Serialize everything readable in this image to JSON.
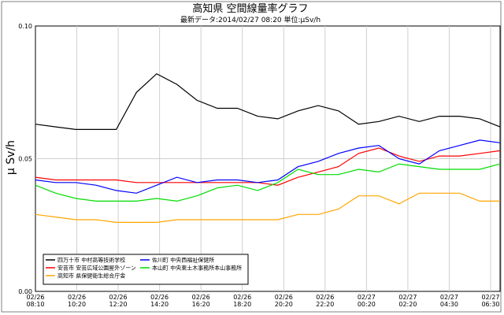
{
  "chart_data": {
    "type": "line",
    "title": "高知県 空間線量率グラフ",
    "subtitle": "最新データ:2014/02/27 08:20 単位:μSv/h",
    "ylabel": "μ Sv/h",
    "xlabel": "",
    "ylim": [
      0.0,
      0.1
    ],
    "yticks": [
      "0.00",
      "0.05",
      "0.10"
    ],
    "grid": true,
    "legend_position": "bottom-left",
    "x_ticks": [
      {
        "date": "02/26",
        "time": "08:10"
      },
      {
        "date": "02/26",
        "time": "10:20"
      },
      {
        "date": "02/26",
        "time": "12:20"
      },
      {
        "date": "02/26",
        "time": "14:20"
      },
      {
        "date": "02/26",
        "time": "16:20"
      },
      {
        "date": "02/26",
        "time": "18:20"
      },
      {
        "date": "02/26",
        "time": "20:20"
      },
      {
        "date": "02/26",
        "time": "22:20"
      },
      {
        "date": "02/27",
        "time": "00:20"
      },
      {
        "date": "02/27",
        "time": "02:20"
      },
      {
        "date": "02/27",
        "time": "04:30"
      },
      {
        "date": "02/27",
        "time": "06:30"
      }
    ],
    "series": [
      {
        "name": "四万十市 中村高等技術学校",
        "color": "#000000",
        "points": [
          [
            0,
            0.063
          ],
          [
            1,
            0.062
          ],
          [
            2,
            0.061
          ],
          [
            3,
            0.061
          ],
          [
            4,
            0.061
          ],
          [
            5,
            0.075
          ],
          [
            6,
            0.082
          ],
          [
            7,
            0.078
          ],
          [
            8,
            0.072
          ],
          [
            9,
            0.069
          ],
          [
            10,
            0.069
          ],
          [
            11,
            0.066
          ],
          [
            12,
            0.065
          ],
          [
            13,
            0.068
          ],
          [
            14,
            0.07
          ],
          [
            15,
            0.068
          ],
          [
            16,
            0.063
          ],
          [
            17,
            0.064
          ],
          [
            18,
            0.066
          ],
          [
            19,
            0.064
          ],
          [
            20,
            0.066
          ],
          [
            21,
            0.066
          ],
          [
            22,
            0.065
          ],
          [
            23,
            0.062
          ]
        ]
      },
      {
        "name": "安芸市 安芸広域公園屋外ゾーン",
        "color": "#ff0000",
        "points": [
          [
            0,
            0.043
          ],
          [
            1,
            0.042
          ],
          [
            2,
            0.042
          ],
          [
            3,
            0.042
          ],
          [
            4,
            0.042
          ],
          [
            5,
            0.041
          ],
          [
            6,
            0.041
          ],
          [
            7,
            0.041
          ],
          [
            8,
            0.041
          ],
          [
            9,
            0.041
          ],
          [
            10,
            0.041
          ],
          [
            11,
            0.041
          ],
          [
            12,
            0.04
          ],
          [
            13,
            0.043
          ],
          [
            14,
            0.045
          ],
          [
            15,
            0.047
          ],
          [
            16,
            0.052
          ],
          [
            17,
            0.054
          ],
          [
            18,
            0.051
          ],
          [
            19,
            0.049
          ],
          [
            20,
            0.051
          ],
          [
            21,
            0.051
          ],
          [
            22,
            0.052
          ],
          [
            23,
            0.053
          ]
        ]
      },
      {
        "name": "高知市 県保健衛生総合庁舎",
        "color": "#ffa500",
        "points": [
          [
            0,
            0.029
          ],
          [
            1,
            0.028
          ],
          [
            2,
            0.027
          ],
          [
            3,
            0.027
          ],
          [
            4,
            0.026
          ],
          [
            5,
            0.026
          ],
          [
            6,
            0.026
          ],
          [
            7,
            0.027
          ],
          [
            8,
            0.027
          ],
          [
            9,
            0.027
          ],
          [
            10,
            0.027
          ],
          [
            11,
            0.027
          ],
          [
            12,
            0.027
          ],
          [
            13,
            0.029
          ],
          [
            14,
            0.029
          ],
          [
            15,
            0.031
          ],
          [
            16,
            0.036
          ],
          [
            17,
            0.036
          ],
          [
            18,
            0.033
          ],
          [
            19,
            0.037
          ],
          [
            20,
            0.037
          ],
          [
            21,
            0.037
          ],
          [
            22,
            0.034
          ],
          [
            23,
            0.034
          ]
        ]
      },
      {
        "name": "佐川町 中央西福祉保健所",
        "color": "#0000ff",
        "points": [
          [
            0,
            0.042
          ],
          [
            1,
            0.041
          ],
          [
            2,
            0.041
          ],
          [
            3,
            0.04
          ],
          [
            4,
            0.038
          ],
          [
            5,
            0.037
          ],
          [
            6,
            0.04
          ],
          [
            7,
            0.043
          ],
          [
            8,
            0.041
          ],
          [
            9,
            0.042
          ],
          [
            10,
            0.042
          ],
          [
            11,
            0.041
          ],
          [
            12,
            0.042
          ],
          [
            13,
            0.047
          ],
          [
            14,
            0.049
          ],
          [
            15,
            0.052
          ],
          [
            16,
            0.054
          ],
          [
            17,
            0.055
          ],
          [
            18,
            0.05
          ],
          [
            19,
            0.048
          ],
          [
            20,
            0.053
          ],
          [
            21,
            0.055
          ],
          [
            22,
            0.057
          ],
          [
            23,
            0.056
          ]
        ]
      },
      {
        "name": "本山町 中央東土木事務所本山事務所",
        "color": "#00dd00",
        "points": [
          [
            0,
            0.04
          ],
          [
            1,
            0.037
          ],
          [
            2,
            0.035
          ],
          [
            3,
            0.034
          ],
          [
            4,
            0.034
          ],
          [
            5,
            0.034
          ],
          [
            6,
            0.035
          ],
          [
            7,
            0.034
          ],
          [
            8,
            0.036
          ],
          [
            9,
            0.039
          ],
          [
            10,
            0.04
          ],
          [
            11,
            0.038
          ],
          [
            12,
            0.041
          ],
          [
            13,
            0.046
          ],
          [
            14,
            0.044
          ],
          [
            15,
            0.044
          ],
          [
            16,
            0.046
          ],
          [
            17,
            0.045
          ],
          [
            18,
            0.048
          ],
          [
            19,
            0.047
          ],
          [
            20,
            0.046
          ],
          [
            21,
            0.046
          ],
          [
            22,
            0.046
          ],
          [
            23,
            0.048
          ]
        ]
      }
    ]
  }
}
